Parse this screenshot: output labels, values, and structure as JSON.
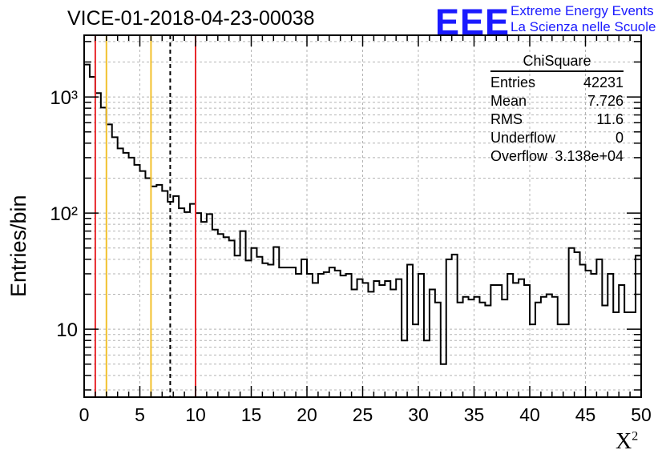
{
  "header": {
    "title": "VICE-01-2018-04-23-00038",
    "logo_text": "EEE",
    "brand_line1": "Extreme Energy Events",
    "brand_line2": "La Scienza nelle Scuole"
  },
  "stats_box": {
    "title": "ChiSquare",
    "rows": [
      {
        "label": "Entries",
        "value": "42231"
      },
      {
        "label": "Mean",
        "value": "7.726"
      },
      {
        "label": "RMS",
        "value": "11.6"
      },
      {
        "label": "Underflow",
        "value": "0"
      },
      {
        "label": "Overflow",
        "value": "3.138e+04"
      }
    ]
  },
  "chart_data": {
    "type": "histogram",
    "title": "VICE-01-2018-04-23-00038",
    "xlabel": "X²",
    "xlabel_main": "X",
    "xlabel_sup": "2",
    "ylabel": "Entries/bin",
    "yscale": "log",
    "xlim": [
      0,
      50
    ],
    "ylim": [
      2.6,
      3400
    ],
    "grid": true,
    "bin_width": 0.5,
    "x_ticks": [
      0,
      5,
      10,
      15,
      20,
      25,
      30,
      35,
      40,
      45,
      50
    ],
    "x_tick_labels": [
      "0",
      "5",
      "10",
      "15",
      "20",
      "25",
      "30",
      "35",
      "40",
      "45",
      "50"
    ],
    "y_ticks": [
      10,
      100,
      1000
    ],
    "y_tick_labels": [
      "10",
      "10²",
      "10³"
    ],
    "values": [
      1900,
      1490,
      1080,
      810,
      580,
      450,
      360,
      330,
      300,
      260,
      230,
      200,
      170,
      175,
      155,
      125,
      140,
      110,
      102,
      120,
      100,
      84,
      98,
      72,
      66,
      62,
      58,
      43,
      70,
      39,
      50,
      42,
      37,
      36,
      51,
      34,
      34,
      34,
      30,
      40,
      30,
      25,
      30,
      31,
      34,
      32,
      29,
      30,
      22,
      27,
      25,
      21,
      26,
      24,
      26,
      22,
      27,
      8,
      36,
      11,
      30,
      8,
      22,
      17,
      5,
      40,
      44,
      17,
      19,
      18,
      19,
      17,
      16,
      24,
      24,
      18,
      30,
      25,
      27,
      24,
      11,
      17,
      19,
      20,
      19,
      11,
      11,
      50,
      46,
      36,
      32,
      30,
      40,
      16,
      30,
      14,
      24,
      14,
      14,
      43
    ],
    "vertical_lines": [
      {
        "x": 1,
        "color": "#e8282c",
        "style": "solid"
      },
      {
        "x": 2,
        "color": "#f2c12e",
        "style": "solid"
      },
      {
        "x": 6,
        "color": "#f2c12e",
        "style": "solid"
      },
      {
        "x": 7.726,
        "color": "#000000",
        "style": "dashed"
      },
      {
        "x": 10,
        "color": "#e8282c",
        "style": "solid"
      }
    ]
  }
}
